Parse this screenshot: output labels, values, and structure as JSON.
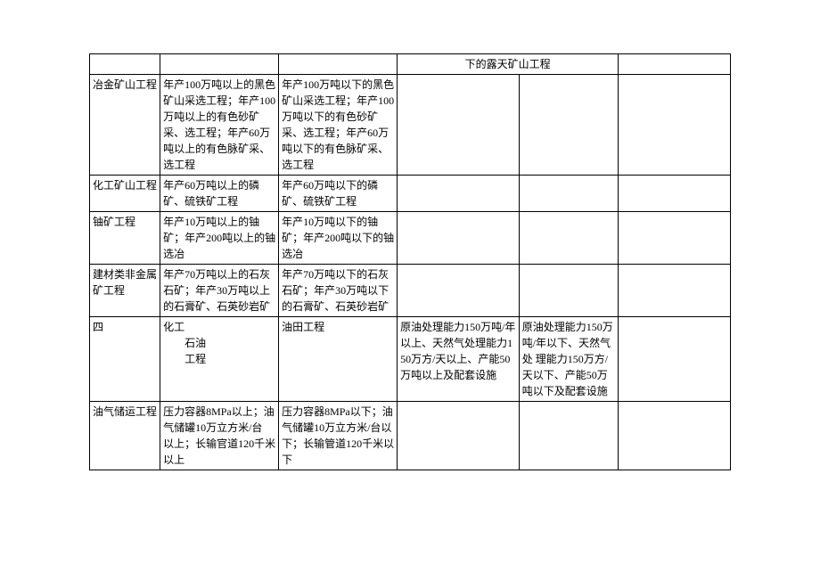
{
  "table": {
    "border_color": "#000000",
    "background_color": "#ffffff",
    "text_color": "#000000",
    "font_size": 12,
    "columns_count": 6,
    "rows": [
      {
        "c1": "",
        "c2": "",
        "c3": "",
        "c4": "下的露天矿山工程",
        "c5": "",
        "c6": ""
      },
      {
        "c1": "冶金矿山工程",
        "c2": "年产100万吨以上的黑色矿山采选工程；年产100万吨以上的有色砂矿采、选工程；年产60万吨以上的有色脉矿采、　选工程",
        "c3": "年产100万吨以下的黑色矿山采选工程；年产100万吨以下的有色砂矿采、选工程；年产60万吨以下的有色脉矿采、选工程",
        "c4": "",
        "c5": "",
        "c6": ""
      },
      {
        "c1": "化工矿山工程",
        "c2": "年产60万吨以上的磷矿、硫铁矿工程",
        "c3": "年产60万吨以下的磷矿、硫铁矿工程",
        "c4": "",
        "c5": "",
        "c6": ""
      },
      {
        "c1": "铀矿工程",
        "c2": "年产10万吨以上的铀矿；年产200吨以上的铀选冶",
        "c3": "年产10万吨以下的铀矿；年产200吨以下的铀选冶",
        "c4": "",
        "c5": "",
        "c6": ""
      },
      {
        "c1": "建材类非金属矿工程",
        "c2": "年产70万吨以上的石灰石矿；年产30万吨以上的石膏矿、石英砂岩矿",
        "c3": "年产70万吨以下的石灰石矿；年产30万吨以下的石膏矿、石英砂岩矿",
        "c4": "",
        "c5": "",
        "c6": ""
      },
      {
        "c1": "四",
        "c2a": "化工",
        "c2b": "石油",
        "c2c": "工程",
        "c3": "油田工程",
        "c4": "原油处理能力150万吨/年以上、天然气处理能力150万方/天以上、产能50万吨以上及配套设施",
        "c5": "原油处理能力150万吨/年以下、天然气处 理能力150万方/天以下、产能50万吨以下及配套设施",
        "c6": ""
      },
      {
        "c1": "油气储运工程",
        "c2": "压力容器8MPa以上；油气储罐10万立方米/台 以上；长输官道120千米以上",
        "c3": "压力容器8MPa以下；油气储罐10万立方米/台以下；长输管道120千米以下",
        "c4": "",
        "c5": "",
        "c6": ""
      }
    ]
  }
}
